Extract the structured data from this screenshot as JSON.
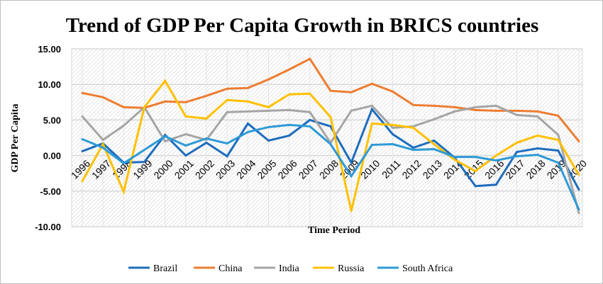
{
  "chart_data": {
    "type": "line",
    "title": "Trend of GDP Per Capita Growth in BRICS countries",
    "xlabel": "Time Period",
    "ylabel": "GDP Per Capita",
    "ylim": [
      -10,
      15
    ],
    "yticks": [
      "15.00",
      "10.00",
      "5.00",
      "0.00",
      "-5.00",
      "-10.00"
    ],
    "ytick_values": [
      15,
      10,
      5,
      0,
      -5,
      -10
    ],
    "grid": true,
    "legend_position": "bottom",
    "categories": [
      "1996",
      "1997",
      "1998",
      "1999",
      "2000",
      "2001",
      "2002",
      "2003",
      "2004",
      "2005",
      "2006",
      "2007",
      "2008",
      "2009",
      "2010",
      "2011",
      "2012",
      "2013",
      "2014",
      "2015",
      "2016",
      "2017",
      "2018",
      "2019",
      "2020"
    ],
    "series": [
      {
        "name": "Brazil",
        "color": "#1f6dbd",
        "values": [
          0.6,
          1.7,
          -1.0,
          -0.9,
          2.9,
          0.0,
          1.8,
          -0.1,
          4.5,
          2.1,
          2.8,
          5.0,
          4.1,
          -1.0,
          6.5,
          3.0,
          1.1,
          2.1,
          -0.3,
          -4.3,
          -4.1,
          0.5,
          1.0,
          0.7,
          -4.8
        ]
      },
      {
        "name": "China",
        "color": "#ed7d31",
        "values": [
          8.8,
          8.2,
          6.8,
          6.7,
          7.6,
          7.5,
          8.4,
          9.4,
          9.5,
          10.7,
          12.1,
          13.6,
          9.1,
          8.9,
          10.1,
          9.0,
          7.1,
          7.0,
          6.8,
          6.4,
          6.3,
          6.3,
          6.2,
          5.6,
          2.0
        ]
      },
      {
        "name": "India",
        "color": "#a5a5a5",
        "values": [
          5.5,
          2.2,
          4.2,
          6.8,
          2.0,
          3.0,
          2.2,
          6.1,
          6.2,
          6.3,
          6.4,
          6.1,
          1.8,
          6.3,
          7.0,
          3.9,
          4.1,
          5.1,
          6.2,
          6.8,
          7.0,
          5.7,
          5.5,
          2.9,
          -8.1
        ]
      },
      {
        "name": "Russia",
        "color": "#ffc000",
        "values": [
          -3.6,
          1.6,
          -5.1,
          6.8,
          10.5,
          5.5,
          5.2,
          7.8,
          7.6,
          6.8,
          8.6,
          8.7,
          5.4,
          -7.8,
          4.5,
          4.3,
          3.9,
          1.6,
          -0.6,
          -2.2,
          0.0,
          1.8,
          2.8,
          2.2,
          -2.7
        ]
      },
      {
        "name": "South Africa",
        "color": "#2e9ad6",
        "values": [
          2.3,
          1.1,
          -1.1,
          0.8,
          2.7,
          1.4,
          2.4,
          1.7,
          3.3,
          4.0,
          4.3,
          4.1,
          1.6,
          -2.9,
          1.5,
          1.6,
          0.8,
          0.9,
          -0.2,
          -0.2,
          -0.7,
          -0.1,
          0.1,
          -1.0,
          -7.6
        ]
      }
    ]
  }
}
